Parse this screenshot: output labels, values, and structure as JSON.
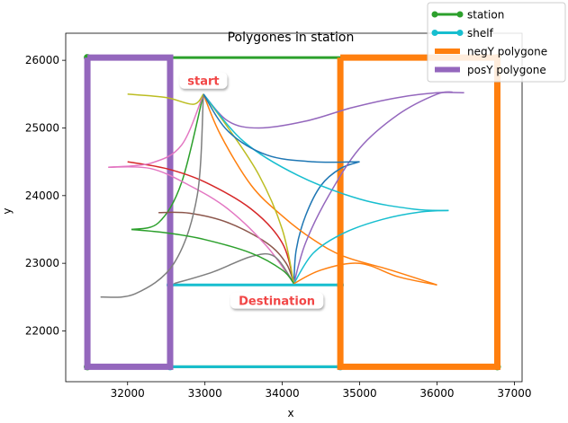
{
  "chart_data": {
    "type": "line",
    "title": "Polygones in station",
    "xlabel": "x",
    "ylabel": "y",
    "xlim": [
      31200,
      37100
    ],
    "ylim": [
      21250,
      26400
    ],
    "xticks": [
      32000,
      33000,
      34000,
      35000,
      36000,
      37000
    ],
    "yticks": [
      22000,
      23000,
      24000,
      25000,
      26000
    ],
    "grid": false,
    "legend_position": "top-right",
    "legend": [
      {
        "label": "station",
        "color": "#2ca02c",
        "kind": "line-marker"
      },
      {
        "label": "shelf",
        "color": "#17becf",
        "kind": "line-marker"
      },
      {
        "label": "negY polygone",
        "color": "#ff7f0e",
        "kind": "thick-line"
      },
      {
        "label": "posY polygone",
        "color": "#9467bd",
        "kind": "thick-line"
      }
    ],
    "polygons": [
      {
        "name": "station",
        "color": "#2ca02c",
        "width": 3,
        "markers": true,
        "points": [
          [
            31480,
            26040
          ],
          [
            36780,
            26040
          ],
          [
            36780,
            21470
          ],
          [
            31480,
            21470
          ],
          [
            31480,
            26040
          ]
        ]
      },
      {
        "name": "shelf",
        "color": "#17becf",
        "width": 3,
        "markers": true,
        "points": [
          [
            32550,
            22680
          ],
          [
            34750,
            22680
          ],
          [
            34750,
            21470
          ],
          [
            32550,
            21470
          ],
          [
            32550,
            22680
          ]
        ]
      },
      {
        "name": "negY polygone",
        "color": "#ff7f0e",
        "width": 7,
        "markers": false,
        "points": [
          [
            34750,
            26040
          ],
          [
            36780,
            26040
          ],
          [
            36780,
            21470
          ],
          [
            34750,
            21470
          ],
          [
            34750,
            26040
          ]
        ]
      },
      {
        "name": "posY polygone",
        "color": "#9467bd",
        "width": 7,
        "markers": false,
        "points": [
          [
            31480,
            26040
          ],
          [
            32550,
            26040
          ],
          [
            32550,
            21470
          ],
          [
            31480,
            21470
          ],
          [
            31480,
            26040
          ]
        ]
      }
    ],
    "paths": [
      {
        "color": "#1f77b4",
        "points": [
          [
            34150,
            22700
          ],
          [
            34180,
            23200
          ],
          [
            34300,
            23700
          ],
          [
            34500,
            24150
          ],
          [
            34750,
            24400
          ],
          [
            35000,
            24500
          ]
        ]
      },
      {
        "color": "#ff7f0e",
        "points": [
          [
            32980,
            25500
          ],
          [
            33200,
            24900
          ],
          [
            33600,
            24150
          ],
          [
            34000,
            23700
          ],
          [
            34400,
            23350
          ],
          [
            34800,
            23100
          ],
          [
            35400,
            22900
          ],
          [
            36000,
            22680
          ]
        ]
      },
      {
        "color": "#2ca02c",
        "points": [
          [
            32050,
            23500
          ],
          [
            32400,
            23600
          ],
          [
            32700,
            24200
          ],
          [
            32980,
            25500
          ]
        ]
      },
      {
        "color": "#d62728",
        "points": [
          [
            32000,
            24500
          ],
          [
            32500,
            24400
          ],
          [
            33000,
            24200
          ],
          [
            33600,
            23800
          ],
          [
            34000,
            23300
          ],
          [
            34150,
            22700
          ]
        ]
      },
      {
        "color": "#9467bd",
        "points": [
          [
            32980,
            25500
          ],
          [
            33300,
            25100
          ],
          [
            33700,
            25000
          ],
          [
            34300,
            25100
          ],
          [
            34900,
            25300
          ],
          [
            35500,
            25450
          ],
          [
            36000,
            25520
          ],
          [
            36350,
            25520
          ]
        ]
      },
      {
        "color": "#9467bd",
        "points": [
          [
            34150,
            22700
          ],
          [
            34300,
            23300
          ],
          [
            34600,
            24000
          ],
          [
            35000,
            24700
          ],
          [
            35500,
            25200
          ],
          [
            36000,
            25500
          ],
          [
            36200,
            25530
          ]
        ]
      },
      {
        "color": "#8c564b",
        "points": [
          [
            32400,
            23750
          ],
          [
            32800,
            23740
          ],
          [
            33300,
            23600
          ],
          [
            33800,
            23300
          ],
          [
            34050,
            23000
          ],
          [
            34150,
            22700
          ]
        ]
      },
      {
        "color": "#e377c2",
        "points": [
          [
            31750,
            24420
          ],
          [
            32300,
            24400
          ],
          [
            32800,
            24150
          ],
          [
            33300,
            23800
          ],
          [
            33800,
            23250
          ],
          [
            34150,
            22700
          ]
        ]
      },
      {
        "color": "#e377c2",
        "points": [
          [
            31750,
            24420
          ],
          [
            32300,
            24480
          ],
          [
            32700,
            24750
          ],
          [
            32980,
            25500
          ]
        ]
      },
      {
        "color": "#7f7f7f",
        "points": [
          [
            31650,
            22500
          ],
          [
            32100,
            22550
          ],
          [
            32600,
            23000
          ],
          [
            32900,
            24000
          ],
          [
            32980,
            25500
          ]
        ]
      },
      {
        "color": "#7f7f7f",
        "points": [
          [
            32600,
            22700
          ],
          [
            33100,
            22870
          ],
          [
            33600,
            23100
          ],
          [
            33900,
            23100
          ],
          [
            34150,
            22700
          ]
        ]
      },
      {
        "color": "#bcbd22",
        "points": [
          [
            32000,
            25500
          ],
          [
            32500,
            25450
          ],
          [
            32850,
            25350
          ],
          [
            32980,
            25500
          ]
        ]
      },
      {
        "color": "#bcbd22",
        "points": [
          [
            32980,
            25500
          ],
          [
            33300,
            25000
          ],
          [
            33700,
            24300
          ],
          [
            34000,
            23500
          ],
          [
            34150,
            22700
          ]
        ]
      },
      {
        "color": "#17becf",
        "points": [
          [
            32980,
            25500
          ],
          [
            33500,
            24800
          ],
          [
            34200,
            24300
          ],
          [
            35000,
            23950
          ],
          [
            35700,
            23800
          ],
          [
            36150,
            23780
          ]
        ]
      },
      {
        "color": "#17becf",
        "points": [
          [
            34150,
            22700
          ],
          [
            34400,
            23150
          ],
          [
            34800,
            23450
          ],
          [
            35300,
            23650
          ],
          [
            35800,
            23760
          ],
          [
            36150,
            23780
          ]
        ]
      },
      {
        "color": "#2ca02c",
        "points": [
          [
            32050,
            23500
          ],
          [
            32500,
            23450
          ],
          [
            33000,
            23350
          ],
          [
            33600,
            23150
          ],
          [
            34000,
            22900
          ],
          [
            34150,
            22700
          ]
        ]
      },
      {
        "color": "#1f77b4",
        "points": [
          [
            32980,
            25500
          ],
          [
            33300,
            24950
          ],
          [
            33800,
            24600
          ],
          [
            34400,
            24500
          ],
          [
            35000,
            24500
          ]
        ]
      },
      {
        "color": "#ff7f0e",
        "points": [
          [
            34150,
            22700
          ],
          [
            34500,
            22900
          ],
          [
            35000,
            23000
          ],
          [
            35500,
            22800
          ],
          [
            36000,
            22680
          ]
        ]
      }
    ],
    "annotations": [
      {
        "text": "start",
        "x": 32980,
        "y": 25700
      },
      {
        "text": "Destination",
        "x": 33930,
        "y": 22450
      }
    ]
  }
}
